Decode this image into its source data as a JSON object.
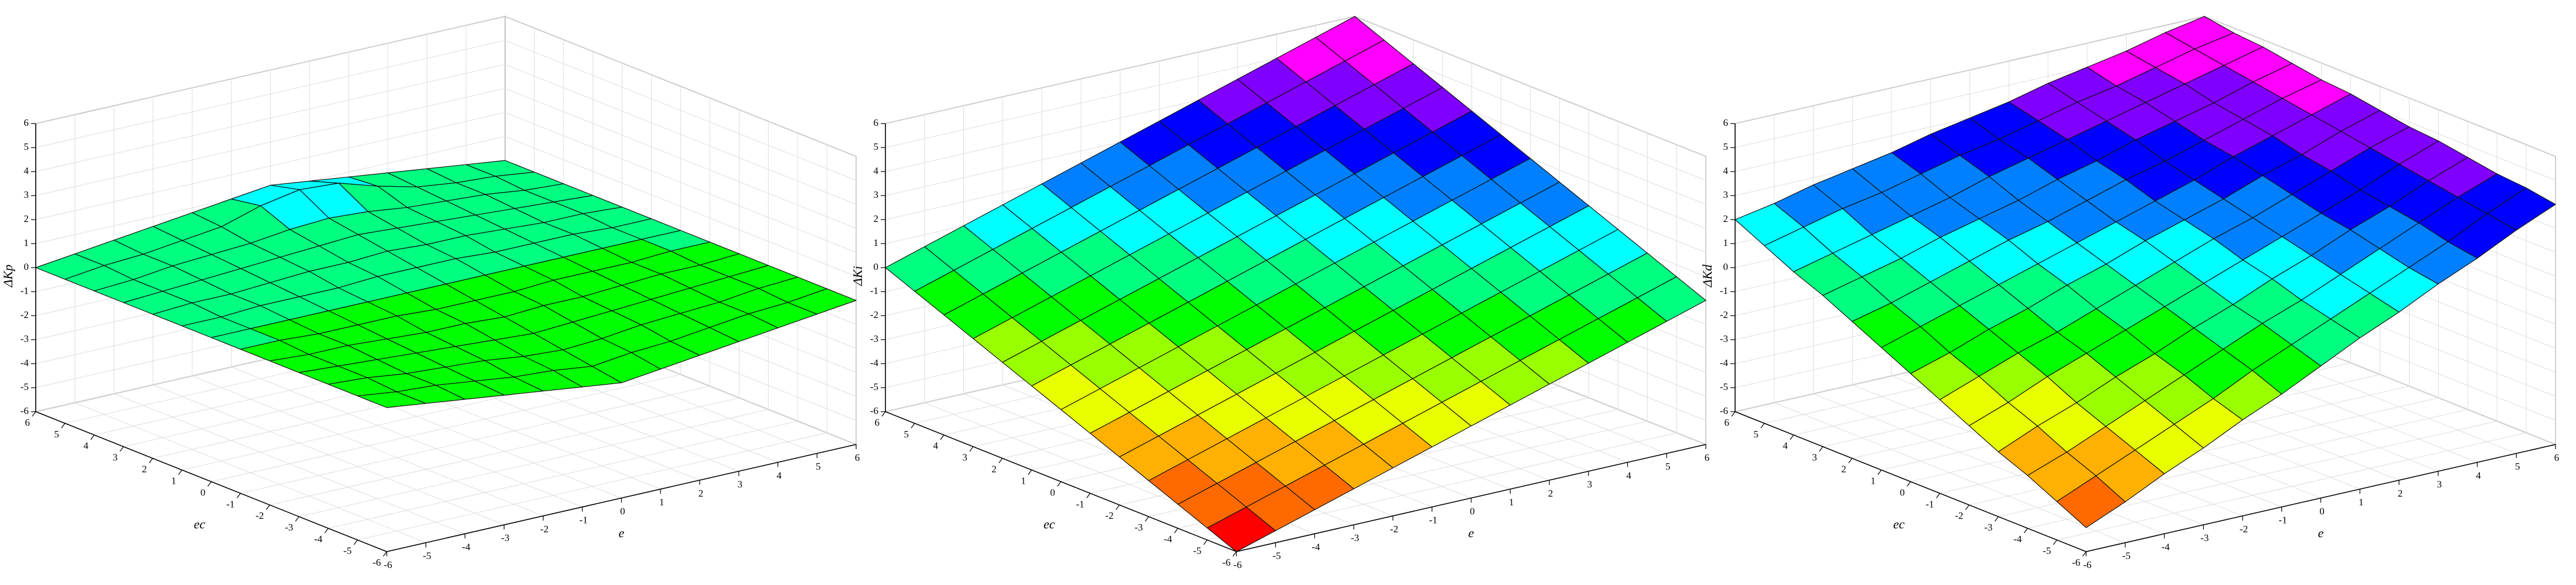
{
  "chart_data": [
    {
      "type": "surface",
      "xlabel": "e",
      "ylabel": "ec",
      "zlabel": "ΔKp",
      "x": [
        -6,
        -5,
        -4,
        -3,
        -2,
        -1,
        0,
        1,
        2,
        3,
        4,
        5,
        6
      ],
      "y": [
        -6,
        -5,
        -4,
        -3,
        -2,
        -1,
        0,
        1,
        2,
        3,
        4,
        5,
        6
      ],
      "z": [
        [
          0,
          -0.2,
          -0.4,
          -0.6,
          -0.8,
          -1,
          -1.2,
          -1,
          -0.8,
          -0.6,
          -0.4,
          -0.2,
          0
        ],
        [
          0,
          -0.2,
          -0.3,
          -0.5,
          -0.7,
          -0.8,
          -1,
          -0.8,
          -0.7,
          -0.5,
          -0.3,
          -0.2,
          0
        ],
        [
          0,
          -0.1,
          -0.3,
          -0.4,
          -0.5,
          -0.7,
          -0.8,
          -0.7,
          -0.5,
          -0.4,
          -0.3,
          -0.1,
          0
        ],
        [
          0,
          -0.1,
          -0.2,
          -0.3,
          -0.4,
          -0.5,
          -0.6,
          -0.5,
          -0.4,
          -0.3,
          -0.2,
          -0.1,
          0
        ],
        [
          0,
          -0.1,
          -0.1,
          -0.2,
          -0.3,
          -0.3,
          -0.4,
          -0.3,
          -0.3,
          -0.2,
          -0.1,
          -0.1,
          0
        ],
        [
          0,
          0,
          -0.1,
          -0.1,
          -0.1,
          -0.2,
          -0.2,
          -0.2,
          -0.1,
          -0.1,
          -0.1,
          0,
          0
        ],
        [
          0,
          0,
          0,
          0,
          0,
          0,
          0,
          0,
          0,
          0,
          0,
          0,
          0
        ],
        [
          0,
          0,
          0.1,
          0.1,
          0.1,
          0.2,
          0.2,
          0.2,
          0.1,
          0.1,
          0.1,
          0,
          0
        ],
        [
          0,
          0.1,
          0.1,
          0.2,
          0.3,
          0.3,
          0.4,
          0.3,
          0.3,
          0.2,
          0.1,
          0.1,
          0
        ],
        [
          0,
          0.1,
          0.2,
          0.3,
          0.4,
          0.5,
          0.6,
          0.5,
          0.4,
          0.3,
          0.2,
          0.1,
          0
        ],
        [
          0,
          0.1,
          0.3,
          0.4,
          0.5,
          0.7,
          0.8,
          0.7,
          0.5,
          0.4,
          0.3,
          0.1,
          0
        ],
        [
          0,
          0.2,
          0.3,
          0.5,
          0.7,
          1.2,
          1.5,
          1.4,
          0.9,
          0.5,
          0.3,
          0.2,
          0
        ],
        [
          0,
          0.2,
          0.4,
          0.6,
          0.8,
          1,
          1.2,
          1,
          0.8,
          0.6,
          0.4,
          0.2,
          0
        ]
      ],
      "xlim": [
        -6,
        6
      ],
      "ylim": [
        -6,
        6
      ],
      "zlim": [
        -6,
        6
      ],
      "xticks": [
        -6,
        -5,
        -4,
        -3,
        -2,
        -1,
        0,
        1,
        2,
        3,
        4,
        5,
        6
      ],
      "yticks": [
        -6,
        -5,
        -4,
        -3,
        -2,
        -1,
        0,
        1,
        2,
        3,
        4,
        5,
        6
      ],
      "zticks": [
        -6,
        -5,
        -4,
        -3,
        -2,
        -1,
        0,
        1,
        2,
        3,
        4,
        5,
        6
      ],
      "grid": true,
      "palette": [
        "#ff0000",
        "#ff6a00",
        "#ffb000",
        "#e8ff00",
        "#99ff00",
        "#00ff00",
        "#00ff80",
        "#00ffff",
        "#0080ff",
        "#0000ff",
        "#8000ff",
        "#ff00ff"
      ]
    },
    {
      "type": "surface",
      "xlabel": "e",
      "ylabel": "ec",
      "zlabel": "ΔKi",
      "x": [
        -6,
        -5,
        -4,
        -3,
        -2,
        -1,
        0,
        1,
        2,
        3,
        4,
        5,
        6
      ],
      "y": [
        -6,
        -5,
        -4,
        -3,
        -2,
        -1,
        0,
        1,
        2,
        3,
        4,
        5,
        6
      ],
      "z": [
        [
          -6,
          -5.5,
          -5,
          -4.5,
          -4,
          -3.5,
          -3,
          -2.5,
          -2,
          -1.5,
          -1,
          -0.5,
          0
        ],
        [
          -5.5,
          -5,
          -4.5,
          -4,
          -3.5,
          -3,
          -2.5,
          -2,
          -1.5,
          -1,
          -0.5,
          0,
          0.5
        ],
        [
          -5,
          -4.5,
          -4,
          -3.5,
          -3,
          -2.5,
          -2,
          -1.5,
          -1,
          -0.5,
          0,
          0.5,
          1
        ],
        [
          -4.5,
          -4,
          -3.5,
          -3,
          -2.5,
          -2,
          -1.5,
          -1,
          -0.5,
          0,
          0.5,
          1,
          1.5
        ],
        [
          -4,
          -3.5,
          -3,
          -2.5,
          -2,
          -1.5,
          -1,
          -0.5,
          0,
          0.5,
          1,
          1.5,
          2
        ],
        [
          -3.5,
          -3,
          -2.5,
          -2,
          -1.5,
          -1,
          -0.5,
          0,
          0.5,
          1,
          1.5,
          2,
          2.5
        ],
        [
          -3,
          -2.5,
          -2,
          -1.5,
          -1,
          -0.5,
          0,
          0.5,
          1,
          1.5,
          2,
          2.5,
          3
        ],
        [
          -2.5,
          -2,
          -1.5,
          -1,
          -0.5,
          0,
          0.5,
          1,
          1.5,
          2,
          2.5,
          3,
          3.5
        ],
        [
          -2,
          -1.5,
          -1,
          -0.5,
          0,
          0.5,
          1,
          1.5,
          2,
          2.5,
          3,
          3.5,
          4
        ],
        [
          -1.5,
          -1,
          -0.5,
          0,
          0.5,
          1,
          1.5,
          2,
          2.5,
          3,
          3.5,
          4,
          4.5
        ],
        [
          -1,
          -0.5,
          0,
          0.5,
          1,
          1.5,
          2,
          2.5,
          3,
          3.5,
          4,
          4.5,
          5
        ],
        [
          -0.5,
          0,
          0.5,
          1,
          1.5,
          2,
          2.5,
          3,
          3.5,
          4,
          4.5,
          5,
          5.5
        ],
        [
          0,
          0.5,
          1,
          1.5,
          2,
          2.5,
          3,
          3.5,
          4,
          4.5,
          5,
          5.5,
          6
        ]
      ],
      "xlim": [
        -6,
        6
      ],
      "ylim": [
        -6,
        6
      ],
      "zlim": [
        -6,
        6
      ],
      "xticks": [
        -6,
        -5,
        -4,
        -3,
        -2,
        -1,
        0,
        1,
        2,
        3,
        4,
        5,
        6
      ],
      "yticks": [
        -6,
        -5,
        -4,
        -3,
        -2,
        -1,
        0,
        1,
        2,
        3,
        4,
        5,
        6
      ],
      "zticks": [
        -6,
        -5,
        -4,
        -3,
        -2,
        -1,
        0,
        1,
        2,
        3,
        4,
        5,
        6
      ],
      "grid": true,
      "palette": [
        "#ff0000",
        "#ff6a00",
        "#ffb000",
        "#e8ff00",
        "#99ff00",
        "#00ff00",
        "#00ff80",
        "#00ffff",
        "#0080ff",
        "#0000ff",
        "#8000ff",
        "#ff00ff"
      ]
    },
    {
      "type": "surface",
      "xlabel": "e",
      "ylabel": "ec",
      "zlabel": "ΔKd",
      "x": [
        -6,
        -5,
        -4,
        -3,
        -2,
        -1,
        0,
        1,
        2,
        3,
        4,
        5,
        6
      ],
      "y": [
        -6,
        -5,
        -4,
        -3,
        -2,
        -1,
        0,
        1,
        2,
        3,
        4,
        5,
        6
      ],
      "z": [
        [
          -5,
          -4.3,
          -3.5,
          -2.8,
          -2,
          -1.3,
          -0.5,
          0.3,
          1,
          1.8,
          2.5,
          3.3,
          4
        ],
        [
          -4.4,
          -3.7,
          -3,
          -2.3,
          -1.6,
          -0.8,
          -0.1,
          0.6,
          1.3,
          2,
          2.7,
          3.5,
          4.2
        ],
        [
          -3.8,
          -3.2,
          -2.5,
          -1.8,
          -1.1,
          -0.4,
          0.3,
          0.9,
          1.6,
          2.3,
          3,
          3.7,
          4.3
        ],
        [
          -3.3,
          -2.6,
          -2,
          -1.3,
          -0.7,
          0,
          0.6,
          1.3,
          1.9,
          2.6,
          3.2,
          3.9,
          4.5
        ],
        [
          -2.7,
          -2.1,
          -1.4,
          -0.8,
          -0.2,
          0.4,
          1,
          1.6,
          2.2,
          2.8,
          3.4,
          4.1,
          4.7
        ],
        [
          -2.1,
          -1.5,
          -0.9,
          -0.4,
          0.2,
          0.8,
          1.4,
          2,
          2.5,
          3.1,
          3.7,
          4.3,
          4.8
        ],
        [
          -1.5,
          -1,
          -0.4,
          0.1,
          0.7,
          1.2,
          1.8,
          2.3,
          2.8,
          3.4,
          3.9,
          4.5,
          5
        ],
        [
          -0.9,
          -0.4,
          0.1,
          0.6,
          1.1,
          1.6,
          2.1,
          2.6,
          3.1,
          3.7,
          4.2,
          4.7,
          5.2
        ],
        [
          -0.3,
          0.1,
          0.6,
          1.1,
          1.6,
          2,
          2.5,
          3,
          3.4,
          3.9,
          4.4,
          4.9,
          5.3
        ],
        [
          0.3,
          0.7,
          1.1,
          1.6,
          2,
          2.4,
          2.9,
          3.3,
          3.8,
          4.2,
          4.6,
          5.1,
          5.5
        ],
        [
          0.8,
          1.2,
          1.6,
          2,
          2.4,
          2.9,
          3.3,
          3.7,
          4.1,
          4.5,
          4.9,
          5.3,
          5.7
        ],
        [
          1.4,
          1.8,
          2.2,
          2.5,
          2.9,
          3.3,
          3.6,
          4,
          4.4,
          4.7,
          5.1,
          5.5,
          5.8
        ],
        [
          2,
          2.3,
          2.7,
          3,
          3.3,
          3.7,
          4,
          4.3,
          4.7,
          5,
          5.3,
          5.7,
          6
        ]
      ],
      "xlim": [
        -6,
        6
      ],
      "ylim": [
        -6,
        6
      ],
      "zlim": [
        -6,
        6
      ],
      "xticks": [
        -6,
        -5,
        -4,
        -3,
        -2,
        -1,
        0,
        1,
        2,
        3,
        4,
        5,
        6
      ],
      "yticks": [
        -6,
        -5,
        -4,
        -3,
        -2,
        -1,
        0,
        1,
        2,
        3,
        4,
        5,
        6
      ],
      "zticks": [
        -6,
        -5,
        -4,
        -3,
        -2,
        -1,
        0,
        1,
        2,
        3,
        4,
        5,
        6
      ],
      "grid": true,
      "palette": [
        "#ff0000",
        "#ff6a00",
        "#ffb000",
        "#e8ff00",
        "#99ff00",
        "#00ff00",
        "#00ff80",
        "#00ffff",
        "#0080ff",
        "#0000ff",
        "#8000ff",
        "#ff00ff"
      ]
    }
  ]
}
